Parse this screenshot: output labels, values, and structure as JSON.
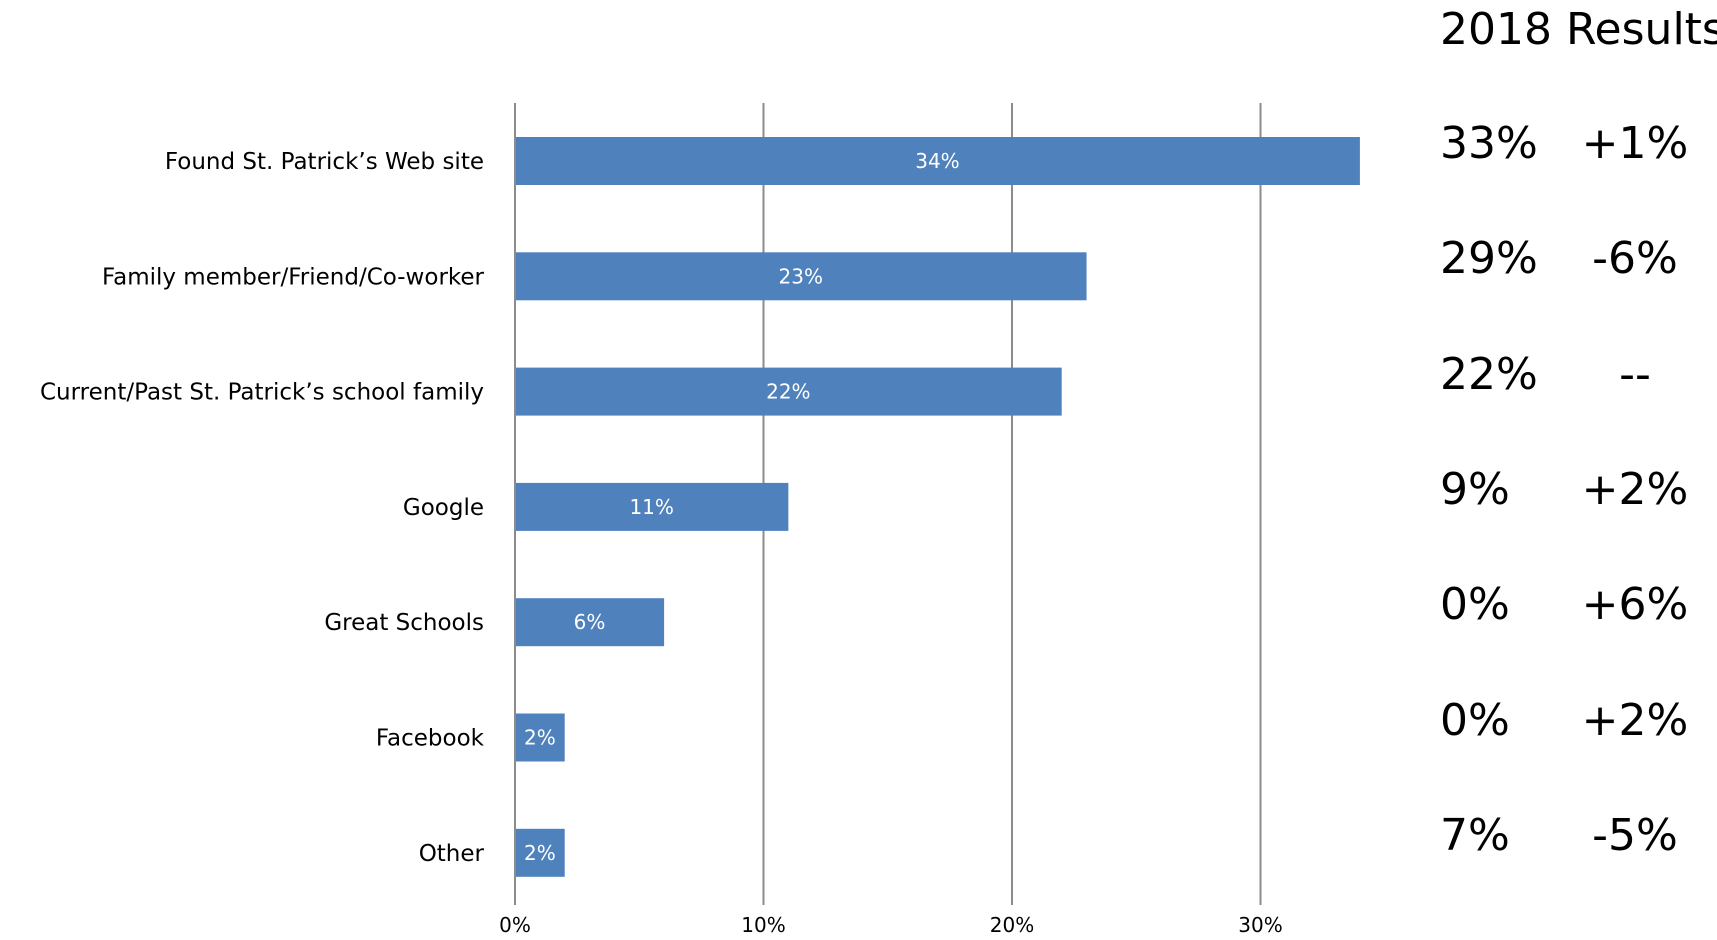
{
  "chart_data": {
    "type": "bar",
    "orientation": "horizontal",
    "categories": [
      "Found St. Patrick’s Web site",
      "Family member/Friend/Co-worker",
      "Current/Past St. Patrick’s school family",
      "Google",
      "Great Schools",
      "Facebook",
      "Other"
    ],
    "values": [
      34,
      23,
      22,
      11,
      6,
      2,
      2
    ],
    "data_labels": [
      "34%",
      "23%",
      "22%",
      "11%",
      "6%",
      "2%",
      "2%"
    ],
    "xlim": [
      0,
      30
    ],
    "x_ticks": [
      "0%",
      "10%",
      "20%",
      "30%"
    ],
    "grid": "vertical",
    "legend": "none",
    "bar_color": "#4F81BD",
    "title": "",
    "xlabel": "",
    "ylabel": ""
  },
  "comparison": {
    "title": "2018 Results",
    "rows": [
      {
        "value": "33%",
        "change": "+1%"
      },
      {
        "value": "29%",
        "change": "-6%"
      },
      {
        "value": "22%",
        "change": "--"
      },
      {
        "value": "9%",
        "change": "+2%"
      },
      {
        "value": "0%",
        "change": "+6%"
      },
      {
        "value": "0%",
        "change": "+2%"
      },
      {
        "value": "7%",
        "change": "-5%"
      }
    ]
  }
}
